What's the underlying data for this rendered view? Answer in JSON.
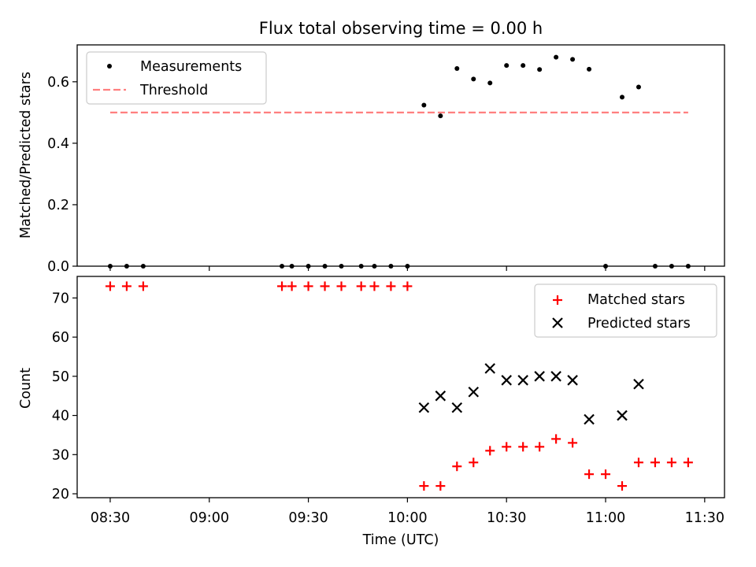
{
  "title": "Flux total observing time = 0.00 h",
  "chart_data": [
    {
      "type": "scatter",
      "panel": "top",
      "title": "Flux total observing time = 0.00 h",
      "xlabel": "",
      "ylabel": "Matched/Predicted stars",
      "xlim": [
        "08:20",
        "11:36"
      ],
      "ylim": [
        0,
        0.72
      ],
      "yticks": [
        0.0,
        0.2,
        0.4,
        0.6
      ],
      "ytick_labels": [
        "0.0",
        "0.2",
        "0.4",
        "0.6"
      ],
      "grid": false,
      "legend": "top-left",
      "series": [
        {
          "name": "Measurements",
          "kind": "points",
          "color": "#000000",
          "x": [
            "08:30",
            "08:35",
            "08:40",
            "09:22",
            "09:25",
            "09:30",
            "09:35",
            "09:40",
            "09:46",
            "09:50",
            "09:55",
            "10:00",
            "10:05",
            "10:10",
            "10:15",
            "10:20",
            "10:25",
            "10:30",
            "10:35",
            "10:40",
            "10:45",
            "10:50",
            "10:55",
            "11:00",
            "11:05",
            "11:10",
            "11:15",
            "11:20",
            "11:25"
          ],
          "y": [
            0,
            0,
            0,
            0,
            0,
            0,
            0,
            0,
            0,
            0,
            0,
            0,
            0.524,
            0.489,
            0.643,
            0.609,
            0.596,
            0.653,
            0.653,
            0.64,
            0.68,
            0.673,
            0.641,
            0,
            0.55,
            0.583,
            0,
            0,
            0
          ]
        },
        {
          "name": "Threshold",
          "kind": "dashed-line",
          "color": "#ff7f7f",
          "x": [
            "08:30",
            "11:25"
          ],
          "y": [
            0.5,
            0.5
          ]
        }
      ]
    },
    {
      "type": "scatter",
      "panel": "bottom",
      "xlabel": "Time (UTC)",
      "ylabel": "Count",
      "xlim": [
        "08:20",
        "11:36"
      ],
      "ylim": [
        19,
        75.5
      ],
      "xticks": [
        "08:30",
        "09:00",
        "09:30",
        "10:00",
        "10:30",
        "11:00",
        "11:30"
      ],
      "yticks": [
        20,
        30,
        40,
        50,
        60,
        70
      ],
      "ytick_labels": [
        "20",
        "30",
        "40",
        "50",
        "60",
        "70"
      ],
      "grid": false,
      "legend": "top-right",
      "series": [
        {
          "name": "Matched stars",
          "marker": "plus",
          "color": "#ff0000",
          "x": [
            "08:30",
            "08:35",
            "08:40",
            "09:22",
            "09:25",
            "09:30",
            "09:35",
            "09:40",
            "09:46",
            "09:50",
            "09:55",
            "10:00",
            "10:05",
            "10:10",
            "10:15",
            "10:20",
            "10:25",
            "10:30",
            "10:35",
            "10:40",
            "10:45",
            "10:50",
            "10:55",
            "11:00",
            "11:05",
            "11:10",
            "11:15",
            "11:20",
            "11:25"
          ],
          "y": [
            73,
            73,
            73,
            73,
            73,
            73,
            73,
            73,
            73,
            73,
            73,
            73,
            22,
            22,
            27,
            28,
            31,
            32,
            32,
            32,
            34,
            33,
            25,
            25,
            22,
            28,
            28,
            28,
            28
          ]
        },
        {
          "name": "Predicted stars",
          "marker": "x",
          "color": "#000000",
          "x": [
            "10:05",
            "10:10",
            "10:15",
            "10:20",
            "10:25",
            "10:30",
            "10:35",
            "10:40",
            "10:45",
            "10:50",
            "10:55",
            "11:05",
            "11:10"
          ],
          "y": [
            42,
            45,
            42,
            46,
            52,
            49,
            49,
            50,
            50,
            49,
            39,
            40,
            48
          ]
        }
      ]
    }
  ]
}
